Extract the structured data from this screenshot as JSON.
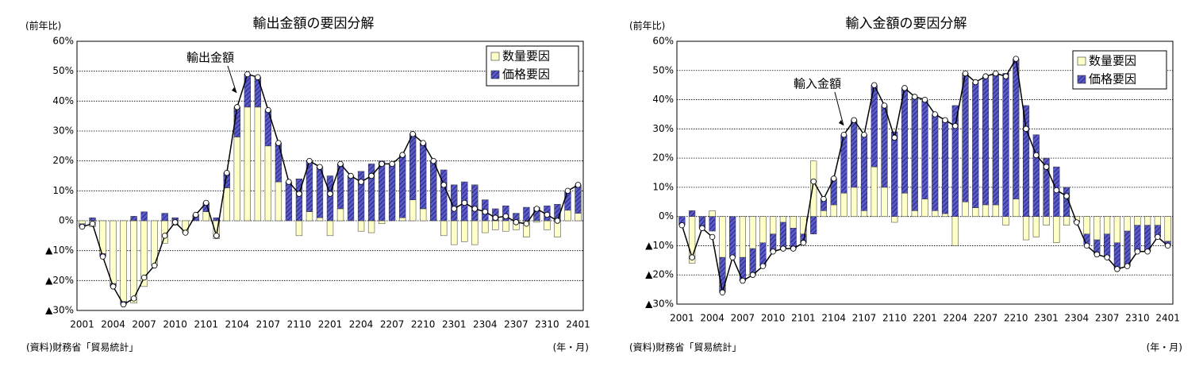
{
  "chart_data": [
    {
      "type": "bar",
      "title": "輸出金額の要因分解",
      "y_unit": "(前年比)",
      "source": "(資料)財務省「貿易統計」",
      "xlabel": "(年・月)",
      "categories": [
        "2001",
        null,
        null,
        "2004",
        null,
        null,
        "2007",
        null,
        null,
        "2010",
        null,
        null,
        "2101",
        null,
        null,
        "2104",
        null,
        null,
        "2107",
        null,
        null,
        "2110",
        null,
        null,
        "2201",
        null,
        null,
        "2204",
        null,
        null,
        "2207",
        null,
        null,
        "2210",
        null,
        null,
        "2301",
        null,
        null,
        "2304",
        null,
        null,
        "2307",
        null,
        null,
        "2310",
        null,
        null,
        "2401"
      ],
      "series": [
        {
          "name": "数量要因",
          "color": "#ffffc8",
          "values": [
            -1,
            -2,
            -11,
            -21,
            -27,
            -27.5,
            -22,
            -15,
            -7.5,
            -1.5,
            -4,
            0,
            3,
            -6,
            11,
            28,
            38,
            38,
            25,
            13,
            0,
            -5,
            3,
            1,
            -5,
            4,
            0,
            -3.5,
            -4,
            -1,
            0,
            1,
            7,
            4,
            0,
            -5,
            -8,
            -7,
            -8,
            -4,
            -3,
            -3.5,
            -3,
            -5.5,
            -0.5,
            -3,
            -5.5,
            3.5,
            2.5
          ]
        },
        {
          "name": "価格要因",
          "color": "#5a5ac8",
          "values": [
            -1,
            1,
            -1,
            -1,
            -1,
            1.5,
            3,
            0,
            2.5,
            1,
            0,
            2,
            3,
            1,
            5,
            10,
            11,
            10,
            12,
            13,
            13,
            14,
            17,
            17,
            15,
            15,
            15,
            16.5,
            19,
            20,
            19,
            21,
            22,
            22,
            20,
            17,
            12,
            13,
            12,
            7,
            4,
            5,
            2.5,
            4.5,
            4.5,
            5,
            5.5,
            6.5,
            9.5
          ]
        },
        {
          "name": "輸出金額",
          "type": "line",
          "color": "#000000",
          "values": [
            -2,
            -1,
            -12,
            -22,
            -28,
            -26,
            -19,
            -15,
            -5,
            -0.5,
            -4,
            2,
            6,
            -5,
            16,
            38,
            49,
            48,
            37,
            26,
            13,
            9,
            20,
            18,
            9,
            19,
            15,
            13,
            15,
            19,
            19,
            22,
            29,
            26,
            20,
            12,
            4,
            6,
            4,
            3,
            1,
            1.5,
            -0.5,
            -1,
            4,
            2,
            0,
            10,
            12
          ]
        }
      ],
      "ylim": [
        -30,
        60
      ],
      "yticks": [
        {
          "value": -30,
          "label": "▲30%"
        },
        {
          "value": -20,
          "label": "▲20%"
        },
        {
          "value": -10,
          "label": "▲10%"
        },
        {
          "value": 0,
          "label": "0%"
        },
        {
          "value": 10,
          "label": "10%"
        },
        {
          "value": 20,
          "label": "20%"
        },
        {
          "value": 30,
          "label": "30%"
        },
        {
          "value": 40,
          "label": "40%"
        },
        {
          "value": 50,
          "label": "50%"
        },
        {
          "value": 60,
          "label": "60%"
        }
      ],
      "grid": true,
      "legend": "upper right"
    },
    {
      "type": "bar",
      "title": "輸入金額の要因分解",
      "y_unit": "(前年比)",
      "source": "(資料)財務省「貿易統計」",
      "xlabel": "(年・月)",
      "categories": [
        "2001",
        null,
        null,
        "2004",
        null,
        null,
        "2007",
        null,
        null,
        "2010",
        null,
        null,
        "2101",
        null,
        null,
        "2104",
        null,
        null,
        "2107",
        null,
        null,
        "2110",
        null,
        null,
        "2201",
        null,
        null,
        "2204",
        null,
        null,
        "2207",
        null,
        null,
        "2210",
        null,
        null,
        "2301",
        null,
        null,
        "2304",
        null,
        null,
        "2307",
        null,
        null,
        "2310",
        null,
        null,
        "2401"
      ],
      "series": [
        {
          "name": "数量要因",
          "color": "#ffffc8",
          "values": [
            0,
            -16,
            0,
            2,
            -14,
            0,
            -14,
            -11,
            -9,
            -6,
            -2,
            -4,
            -6,
            19,
            2,
            4,
            8,
            10,
            2,
            17,
            10,
            -2,
            8,
            2,
            6,
            2,
            1,
            -10,
            5,
            3,
            4,
            4,
            -3,
            6,
            -8,
            -7,
            -3,
            -9,
            -3,
            -1.5,
            -6,
            -8,
            -6,
            -9,
            -5,
            -3,
            -3,
            -3,
            -8.5
          ]
        },
        {
          "name": "価格要因",
          "color": "#5a5ac8",
          "values": [
            -3,
            2,
            -4,
            -5,
            -12,
            -14,
            -8,
            -9,
            -8,
            -6,
            -9,
            -7,
            -3,
            -6,
            4,
            9,
            20,
            23,
            26,
            28,
            28,
            29,
            36,
            39,
            34,
            33,
            32,
            38,
            44,
            43,
            44,
            45,
            49,
            48,
            38,
            28,
            20,
            17,
            10,
            -0.5,
            -4,
            -5,
            -8,
            -9,
            -12,
            -9,
            -9,
            -4,
            -1.5
          ]
        },
        {
          "name": "輸入金額",
          "type": "line",
          "color": "#000000",
          "values": [
            -3,
            -14,
            -4,
            -7,
            -26,
            -14,
            -22,
            -20,
            -17,
            -12,
            -11,
            -11,
            -9,
            12,
            6,
            13,
            28,
            33,
            28,
            45,
            38,
            27,
            44,
            41,
            40,
            35,
            33,
            31,
            49,
            46,
            48,
            49,
            48,
            54,
            30,
            21,
            17,
            9,
            7,
            -2,
            -10,
            -13,
            -14,
            -18,
            -17,
            -12,
            -12,
            -7,
            -10
          ]
        }
      ],
      "ylim": [
        -30,
        60
      ],
      "yticks": [
        {
          "value": -30,
          "label": "▲30%"
        },
        {
          "value": -20,
          "label": "▲20%"
        },
        {
          "value": -10,
          "label": "▲10%"
        },
        {
          "value": 0,
          "label": "0%"
        },
        {
          "value": 10,
          "label": "10%"
        },
        {
          "value": 20,
          "label": "20%"
        },
        {
          "value": 30,
          "label": "30%"
        },
        {
          "value": 40,
          "label": "40%"
        },
        {
          "value": 50,
          "label": "50%"
        },
        {
          "value": 60,
          "label": "60%"
        }
      ],
      "grid": true,
      "legend": "upper right"
    }
  ]
}
